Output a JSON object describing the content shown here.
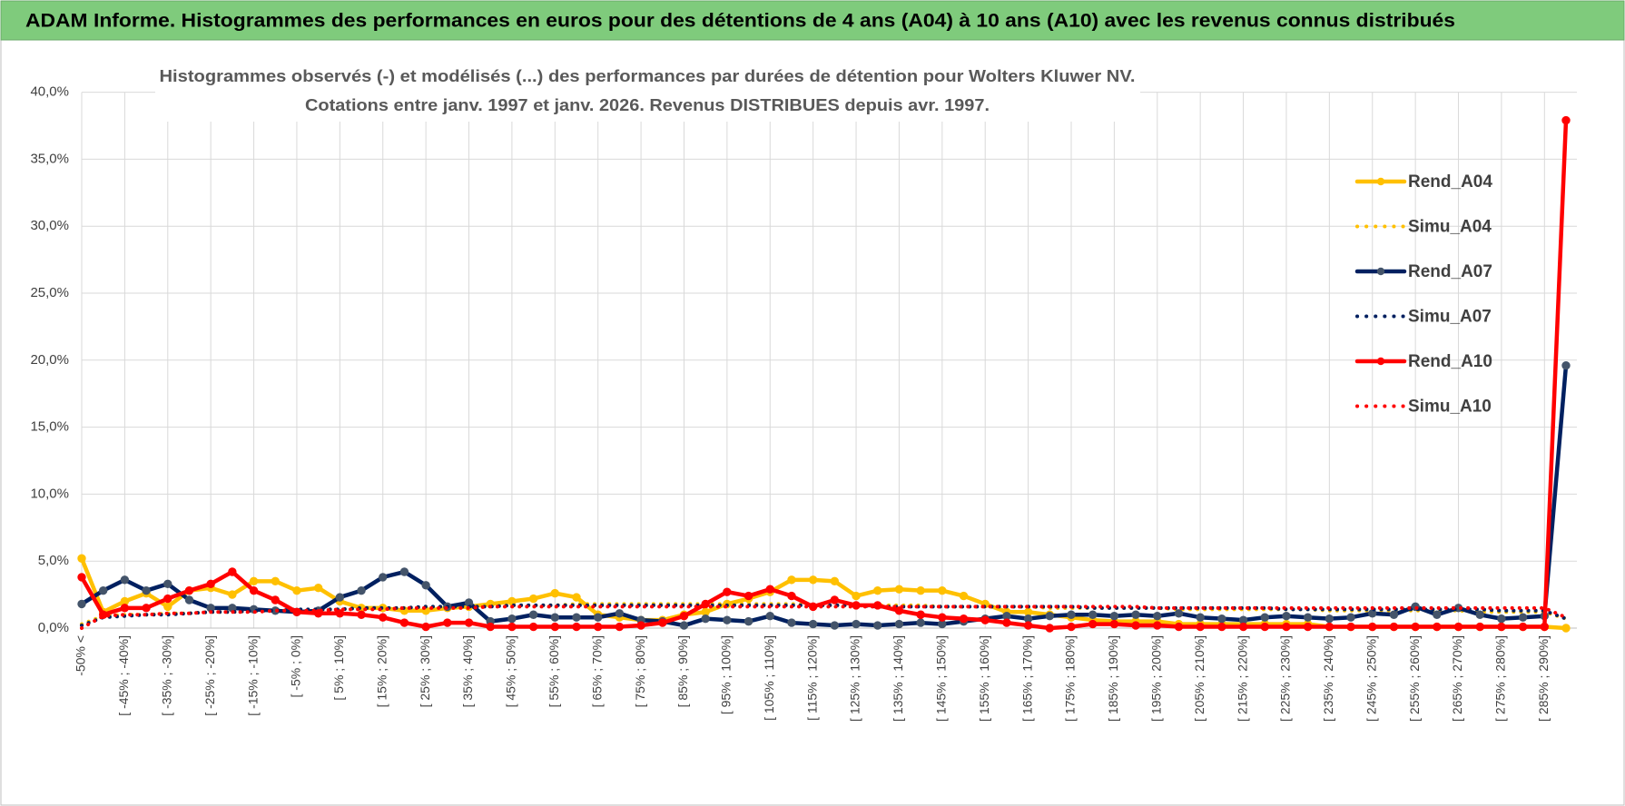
{
  "chart_data": {
    "type": "line",
    "title": "ADAM Informe. Histogrammes des performances en euros pour des détentions de 4 ans (A04) à 10 ans (A10) avec les revenus connus distribués",
    "subtitle": [
      "Histogrammes observés (-) et modélisés (...) des performances par durées de détention pour Wolters Kluwer NV.",
      "Cotations entre janv. 1997 et janv. 2026. Revenus DISTRIBUES depuis avr. 1997."
    ],
    "categories": [
      "-50% <",
      null,
      "[ -45% ; -40%]",
      null,
      "[ -35% ; -30%]",
      null,
      "[ -25% ; -20%]",
      null,
      "[ -15% ; -10%]",
      null,
      "[ -5% ; 0%]",
      null,
      "[ 5% ; 10%]",
      null,
      "[ 15% ; 20%]",
      null,
      "[ 25% ; 30%]",
      null,
      "[ 35% ; 40%]",
      null,
      "[ 45% ; 50%]",
      null,
      "[ 55% ; 60%]",
      null,
      "[ 65% ; 70%]",
      null,
      "[ 75% ; 80%]",
      null,
      "[ 85% ; 90%]",
      null,
      "[ 95% ; 100%]",
      null,
      "[ 105% ; 110%]",
      null,
      "[ 115% ; 120%]",
      null,
      "[ 125% ; 130%]",
      null,
      "[ 135% ; 140%]",
      null,
      "[ 145% ; 150%]",
      null,
      "[ 155% ; 160%]",
      null,
      "[ 165% ; 170%]",
      null,
      "[ 175% ; 180%]",
      null,
      "[ 185% ; 190%]",
      null,
      "[ 195% ; 200%]",
      null,
      "[ 205% ; 210%]",
      null,
      "[ 215% ; 220%]",
      null,
      "[ 225% ; 230%]",
      null,
      "[ 235% ; 240%]",
      null,
      "[ 245% ; 250%]",
      null,
      "[ 255% ; 260%]",
      null,
      "[ 265% ; 270%]",
      null,
      "[ 275% ; 280%]",
      null,
      "[ 285% ; 290%]",
      null
    ],
    "series": [
      {
        "name": "Rend_A04",
        "color": "#FFC000",
        "marker_color": "#FFC000",
        "style": "solid",
        "markers": true,
        "values": [
          5.2,
          1.2,
          2.0,
          2.6,
          1.6,
          2.8,
          3.0,
          2.5,
          3.5,
          3.5,
          2.8,
          3.0,
          2.0,
          1.5,
          1.5,
          1.3,
          1.3,
          1.5,
          1.6,
          1.8,
          2.0,
          2.2,
          2.6,
          2.3,
          1.0,
          0.8,
          0.6,
          0.6,
          1.0,
          1.2,
          1.8,
          2.2,
          2.7,
          3.6,
          3.6,
          3.5,
          2.4,
          2.8,
          2.9,
          2.8,
          2.8,
          2.4,
          1.8,
          1.2,
          1.2,
          1.0,
          0.8,
          0.6,
          0.5,
          0.5,
          0.5,
          0.3,
          0.3,
          0.3,
          0.3,
          0.3,
          0.3,
          0.3,
          0.1,
          0.1,
          0.1,
          0.1,
          0.1,
          0.1,
          0.1,
          0.1,
          0.1,
          0.1,
          0.1,
          0.0
        ]
      },
      {
        "name": "Simu_A04",
        "color": "#FFC000",
        "style": "dotted",
        "markers": false,
        "values": [
          0.3,
          0.9,
          1.0,
          1.0,
          1.1,
          1.1,
          1.2,
          1.2,
          1.3,
          1.3,
          1.3,
          1.4,
          1.4,
          1.5,
          1.5,
          1.5,
          1.6,
          1.6,
          1.6,
          1.7,
          1.7,
          1.7,
          1.7,
          1.8,
          1.8,
          1.8,
          1.8,
          1.8,
          1.8,
          1.8,
          1.8,
          1.8,
          1.8,
          1.8,
          1.7,
          1.7,
          1.7,
          1.7,
          1.7,
          1.7,
          1.6,
          1.6,
          1.6,
          1.6,
          1.6,
          1.5,
          1.5,
          1.5,
          1.5,
          1.5,
          1.5,
          1.4,
          1.4,
          1.4,
          1.4,
          1.4,
          1.4,
          1.4,
          1.3,
          1.3,
          1.3,
          1.3,
          1.3,
          1.3,
          1.3,
          1.2,
          1.2,
          1.2,
          1.2,
          0.7
        ]
      },
      {
        "name": "Rend_A07",
        "color": "#002060",
        "marker_color": "#44546A",
        "style": "solid",
        "markers": true,
        "values": [
          1.8,
          2.8,
          3.6,
          2.8,
          3.3,
          2.1,
          1.5,
          1.5,
          1.4,
          1.3,
          1.2,
          1.3,
          2.3,
          2.8,
          3.8,
          4.2,
          3.2,
          1.6,
          1.9,
          0.5,
          0.7,
          1.0,
          0.8,
          0.8,
          0.8,
          1.1,
          0.6,
          0.5,
          0.2,
          0.7,
          0.6,
          0.5,
          0.9,
          0.4,
          0.3,
          0.2,
          0.3,
          0.2,
          0.3,
          0.4,
          0.3,
          0.5,
          0.7,
          0.9,
          0.7,
          0.9,
          1.0,
          1.0,
          0.9,
          1.0,
          0.9,
          1.1,
          0.8,
          0.7,
          0.6,
          0.8,
          0.9,
          0.8,
          0.7,
          0.8,
          1.1,
          1.0,
          1.6,
          1.0,
          1.5,
          1.0,
          0.7,
          0.8,
          0.9,
          19.6
        ]
      },
      {
        "name": "Simu_A07",
        "color": "#002060",
        "style": "dotted",
        "markers": false,
        "values": [
          0.2,
          0.8,
          0.9,
          1.0,
          1.0,
          1.1,
          1.2,
          1.2,
          1.3,
          1.3,
          1.4,
          1.4,
          1.4,
          1.5,
          1.5,
          1.5,
          1.6,
          1.6,
          1.6,
          1.6,
          1.7,
          1.7,
          1.7,
          1.7,
          1.7,
          1.7,
          1.7,
          1.7,
          1.7,
          1.7,
          1.7,
          1.7,
          1.7,
          1.7,
          1.7,
          1.7,
          1.7,
          1.6,
          1.6,
          1.6,
          1.6,
          1.6,
          1.6,
          1.6,
          1.6,
          1.6,
          1.6,
          1.5,
          1.5,
          1.5,
          1.5,
          1.5,
          1.5,
          1.5,
          1.5,
          1.5,
          1.4,
          1.4,
          1.4,
          1.4,
          1.4,
          1.4,
          1.4,
          1.4,
          1.4,
          1.4,
          1.3,
          1.3,
          1.3,
          0.7
        ]
      },
      {
        "name": "Rend_A10",
        "color": "#FF0000",
        "marker_color": "#FF0000",
        "style": "solid",
        "markers": true,
        "values": [
          3.8,
          1.0,
          1.5,
          1.5,
          2.2,
          2.8,
          3.3,
          4.2,
          2.8,
          2.1,
          1.2,
          1.1,
          1.1,
          1.0,
          0.8,
          0.4,
          0.1,
          0.4,
          0.4,
          0.1,
          0.1,
          0.1,
          0.1,
          0.1,
          0.1,
          0.1,
          0.2,
          0.4,
          0.9,
          1.8,
          2.7,
          2.4,
          2.9,
          2.4,
          1.6,
          2.1,
          1.7,
          1.7,
          1.3,
          1.0,
          0.8,
          0.7,
          0.6,
          0.4,
          0.2,
          0.0,
          0.1,
          0.3,
          0.3,
          0.2,
          0.2,
          0.1,
          0.1,
          0.1,
          0.1,
          0.1,
          0.1,
          0.1,
          0.1,
          0.1,
          0.1,
          0.1,
          0.1,
          0.1,
          0.1,
          0.1,
          0.1,
          0.1,
          0.1,
          37.9
        ]
      },
      {
        "name": "Simu_A10",
        "color": "#FF0000",
        "style": "dotted",
        "markers": false,
        "values": [
          0.0,
          0.9,
          1.0,
          1.0,
          1.1,
          1.1,
          1.2,
          1.2,
          1.2,
          1.3,
          1.3,
          1.3,
          1.4,
          1.4,
          1.4,
          1.5,
          1.5,
          1.5,
          1.5,
          1.6,
          1.6,
          1.6,
          1.6,
          1.6,
          1.6,
          1.6,
          1.6,
          1.6,
          1.6,
          1.6,
          1.6,
          1.6,
          1.6,
          1.6,
          1.6,
          1.6,
          1.6,
          1.6,
          1.6,
          1.6,
          1.6,
          1.6,
          1.6,
          1.6,
          1.6,
          1.6,
          1.6,
          1.6,
          1.6,
          1.6,
          1.5,
          1.5,
          1.5,
          1.5,
          1.5,
          1.5,
          1.5,
          1.5,
          1.5,
          1.5,
          1.5,
          1.5,
          1.5,
          1.5,
          1.5,
          1.5,
          1.5,
          1.5,
          1.5,
          0.8
        ]
      }
    ],
    "ylim": [
      0,
      40
    ],
    "yticks": [
      {
        "value": 0,
        "label": "0,0%"
      },
      {
        "value": 5,
        "label": "5,0%"
      },
      {
        "value": 10,
        "label": "10,0%"
      },
      {
        "value": 15,
        "label": "15,0%"
      },
      {
        "value": 20,
        "label": "20,0%"
      },
      {
        "value": 25,
        "label": "25,0%"
      },
      {
        "value": 30,
        "label": "30,0%"
      },
      {
        "value": 35,
        "label": "35,0%"
      },
      {
        "value": 40,
        "label": "40,0%"
      }
    ],
    "grid": true,
    "legend_position": "right"
  }
}
